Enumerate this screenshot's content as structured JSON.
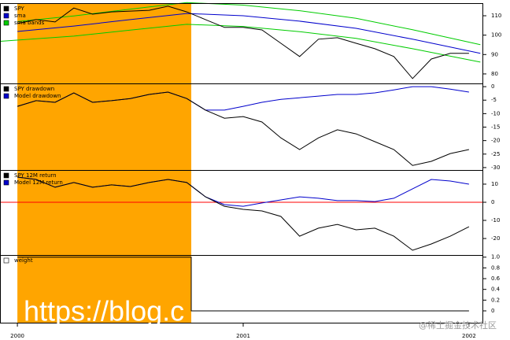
{
  "chart_data": [
    {
      "type": "line",
      "xlim": [
        1999.923,
        2002.063
      ],
      "ylim": [
        75.1,
        116.5
      ],
      "yticks": [
        80,
        90,
        100,
        110
      ],
      "legend": "upper left",
      "shade": {
        "from": 2000,
        "to": 2000.77,
        "color": "#ffa500"
      },
      "series": [
        {
          "name": "SPY",
          "color": "#000000",
          "x": [
            2000,
            2000.083,
            2000.167,
            2000.25,
            2000.333,
            2000.417,
            2000.5,
            2000.583,
            2000.667,
            2000.75,
            2000.833,
            2000.917,
            2001,
            2001.083,
            2001.167,
            2001.25,
            2001.333,
            2001.417,
            2001.5,
            2001.583,
            2001.667,
            2001.75,
            2001.833,
            2001.917,
            2002
          ],
          "values": [
            106,
            108,
            106.8,
            114,
            110.8,
            112,
            112.4,
            112.8,
            114.9,
            112,
            108,
            104,
            104,
            102.7,
            95.8,
            89,
            97.9,
            98.7,
            95.8,
            93,
            89,
            77.6,
            87.7,
            90.6,
            90.6
          ]
        },
        {
          "name": "sma",
          "color": "#0000cc",
          "x": [
            2000,
            2000.25,
            2000.5,
            2000.75,
            2001,
            2001.25,
            2001.5,
            2001.75,
            2002.05
          ],
          "values": [
            101.9,
            104.7,
            108,
            111.2,
            110,
            107.2,
            103.5,
            97.9,
            90.6
          ]
        },
        {
          "name": "sma bands",
          "color": "#00cc00",
          "x": [
            2000,
            2000.25,
            2000.5,
            2000.75,
            2001,
            2001.25,
            2001.5,
            2001.75,
            2002.05
          ],
          "values": [
            107,
            109.9,
            113.4,
            116.8,
            115.5,
            112.6,
            108.7,
            102.8,
            95.1
          ]
        },
        {
          "color": "#00cc00",
          "x": [
            1999.923,
            2000.25,
            2000.5,
            2000.75,
            2001,
            2001.25,
            2001.5,
            2001.75,
            2002.05
          ],
          "values": [
            96.8,
            99.5,
            102.6,
            105.6,
            104.5,
            101.8,
            98.3,
            93,
            86.1
          ]
        }
      ]
    },
    {
      "type": "line",
      "xlim": [
        1999.923,
        2002.063
      ],
      "ylim": [
        -30.9,
        1.2
      ],
      "yticks": [
        0,
        -5,
        -10,
        -15,
        -20,
        -25,
        -30
      ],
      "legend": "upper left",
      "shade": {
        "from": 2000,
        "to": 2000.77,
        "color": "#ffa500"
      },
      "series": [
        {
          "name": "SPY drawdown",
          "color": "#000000",
          "x": [
            2000,
            2000.083,
            2000.167,
            2000.25,
            2000.333,
            2000.417,
            2000.5,
            2000.583,
            2000.667,
            2000.75,
            2000.833,
            2000.917,
            2001,
            2001.083,
            2001.167,
            2001.25,
            2001.333,
            2001.417,
            2001.5,
            2001.583,
            2001.667,
            2001.75,
            2001.833,
            2001.917,
            2002
          ],
          "values": [
            -7.3,
            -5.2,
            -5.8,
            -2.3,
            -5.8,
            -5.2,
            -4.4,
            -2.9,
            -2,
            -4.4,
            -8.7,
            -11.7,
            -11.1,
            -13.1,
            -19,
            -23.3,
            -19,
            -16,
            -17.5,
            -20.4,
            -23.3,
            -29.2,
            -27.7,
            -24.8,
            -23.3
          ]
        },
        {
          "name": "Model drawdown",
          "color": "#0000cc",
          "x": [
            2000,
            2000.083,
            2000.167,
            2000.25,
            2000.333,
            2000.417,
            2000.5,
            2000.583,
            2000.667,
            2000.75,
            2000.833,
            2000.917,
            2001,
            2001.083,
            2001.167,
            2001.25,
            2001.333,
            2001.417,
            2001.5,
            2001.583,
            2001.667,
            2001.75,
            2001.833,
            2001.917,
            2002
          ],
          "values": [
            -7.3,
            -5.2,
            -5.8,
            -2.3,
            -5.8,
            -5.2,
            -4.4,
            -2.9,
            -2,
            -4.4,
            -8.7,
            -8.7,
            -7.3,
            -5.8,
            -4.7,
            -4.1,
            -3.5,
            -2.9,
            -2.9,
            -2.3,
            -1.2,
            0,
            0,
            -0.9,
            -2
          ]
        }
      ]
    },
    {
      "type": "line",
      "xlim": [
        1999.923,
        2002.063
      ],
      "ylim": [
        -29.1,
        17.8
      ],
      "yticks": [
        10,
        0,
        -10,
        -20
      ],
      "legend": "upper left",
      "shade": {
        "from": 2000,
        "to": 2000.77,
        "color": "#ffa500"
      },
      "hline": {
        "value": 0,
        "color": "#ff0000"
      },
      "series": [
        {
          "name": "SPY 12M return",
          "color": "#000000",
          "x": [
            2000,
            2000.083,
            2000.167,
            2000.25,
            2000.333,
            2000.417,
            2000.5,
            2000.583,
            2000.667,
            2000.75,
            2000.833,
            2000.917,
            2001,
            2001.083,
            2001.167,
            2001.25,
            2001.333,
            2001.417,
            2001.5,
            2001.583,
            2001.667,
            2001.75,
            2001.833,
            2001.917,
            2002
          ],
          "values": [
            13.9,
            12.6,
            8.3,
            10.9,
            8.3,
            9.6,
            8.7,
            10.9,
            12.6,
            10.9,
            3,
            -2.2,
            -3.9,
            -4.8,
            -7.8,
            -18.7,
            -14.3,
            -12.2,
            -15.2,
            -14.3,
            -18.7,
            -26.5,
            -23,
            -18.7,
            -13.5
          ]
        },
        {
          "name": "Model 12M return",
          "color": "#0000cc",
          "x": [
            2000,
            2000.083,
            2000.167,
            2000.25,
            2000.333,
            2000.417,
            2000.5,
            2000.583,
            2000.667,
            2000.75,
            2000.833,
            2000.917,
            2001,
            2001.083,
            2001.167,
            2001.25,
            2001.333,
            2001.417,
            2001.5,
            2001.583,
            2001.667,
            2001.75,
            2001.833,
            2001.917,
            2002
          ],
          "values": [
            13.9,
            12.6,
            8.3,
            10.9,
            8.3,
            9.6,
            8.7,
            10.9,
            12.6,
            10.9,
            3,
            -1.3,
            -2.2,
            -0.4,
            1.3,
            3,
            2.2,
            0.9,
            0.9,
            0.4,
            2.2,
            7.4,
            12.6,
            11.7,
            10
          ]
        }
      ]
    },
    {
      "type": "line",
      "xlim": [
        1999.923,
        2002.063
      ],
      "ylim": [
        -0.22,
        1.04
      ],
      "yticks": [
        {
          "value": 1,
          "label": "1.0"
        },
        0.8,
        0.6,
        0.4,
        0.2,
        0
      ],
      "legend": "upper left",
      "xticks": [
        2000,
        2001,
        2002
      ],
      "shade": {
        "from": 2000,
        "to": 2000.77,
        "color": "#ffa500"
      },
      "series": [
        {
          "name": "weight",
          "color": "#000000",
          "x": [
            2000,
            2000.77,
            2000.77,
            2002
          ],
          "values": [
            1,
            1,
            0,
            0
          ]
        }
      ]
    }
  ],
  "watermark": [
    "https://blog.c",
    "@稀土掘金技术社区"
  ]
}
